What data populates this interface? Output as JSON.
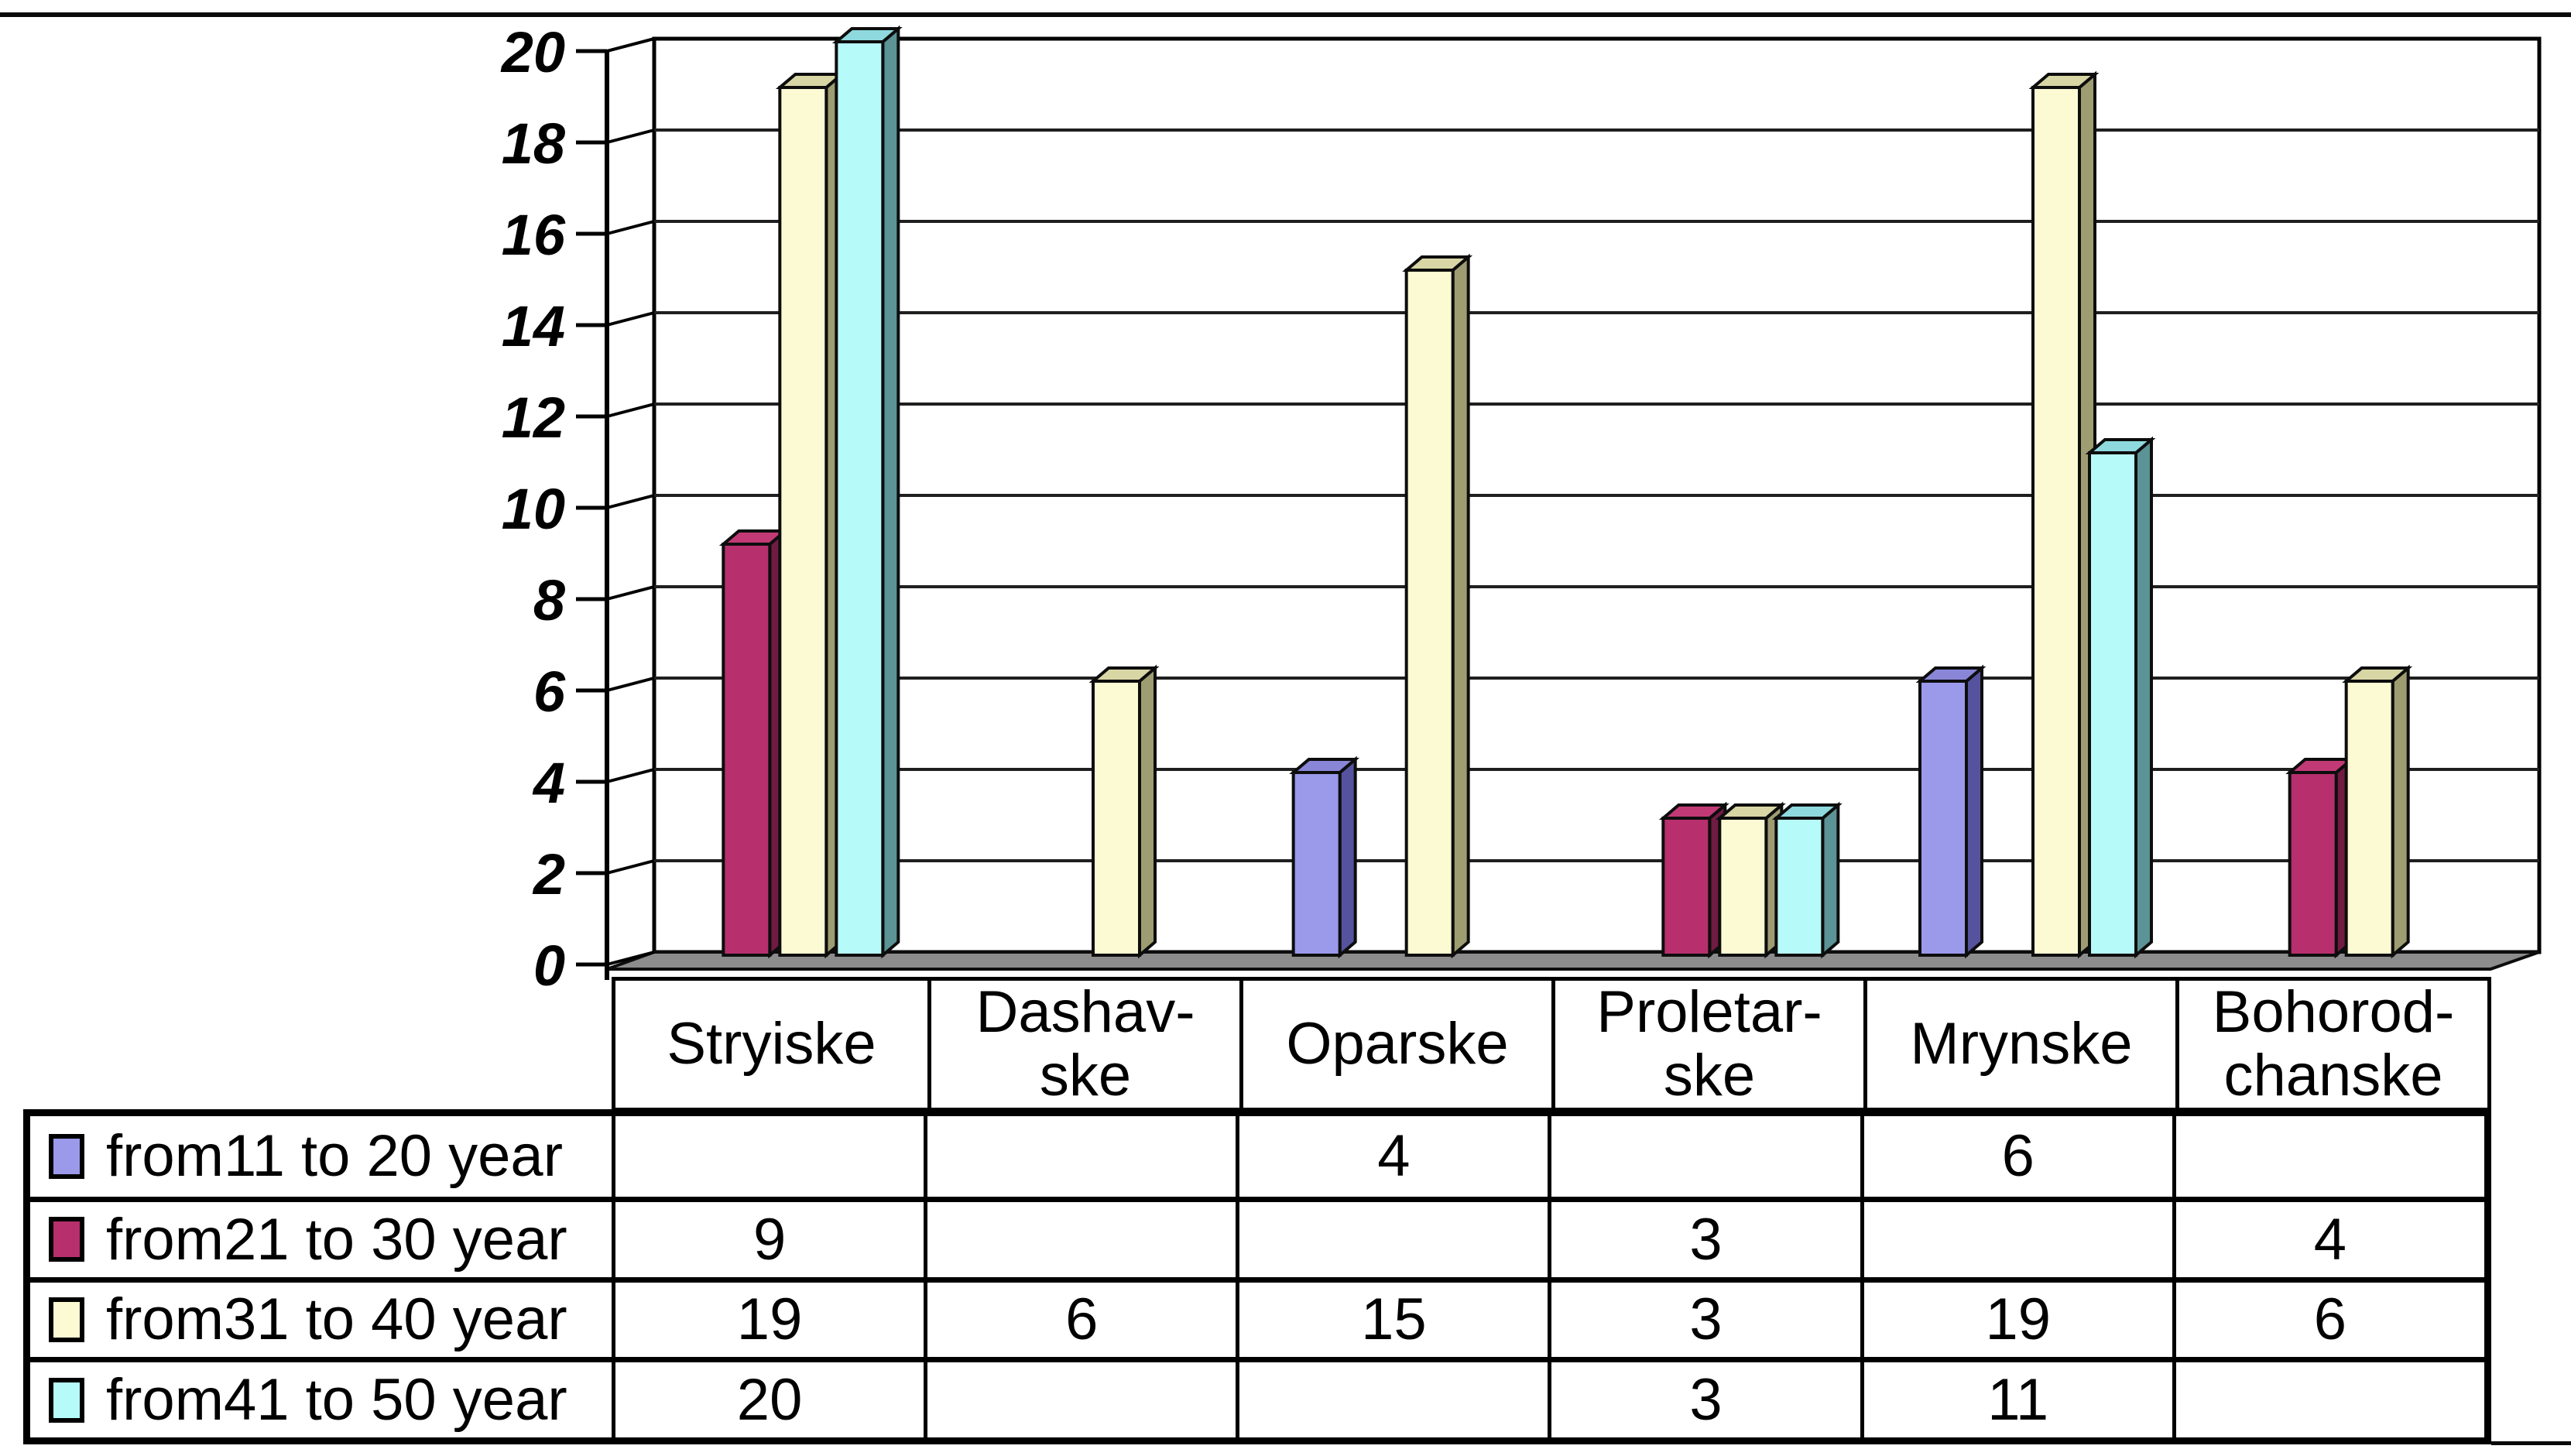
{
  "y_axis": {
    "tick_labels": [
      "0",
      "2",
      "4",
      "6",
      "8",
      "10",
      "12",
      "14",
      "16",
      "18",
      "20"
    ]
  },
  "chart_data": {
    "type": "bar",
    "style": "3d-column",
    "title": "",
    "xlabel": "",
    "ylabel": "",
    "ylim": [
      0,
      20
    ],
    "ytick_step": 2,
    "grid": "horizontal",
    "legend_position": "table-left",
    "categories": [
      "Stryiske",
      "Dashavske",
      "Oparske",
      "Proletarske",
      "Mrynske",
      "Bohorodchanske"
    ],
    "category_display": [
      [
        "Stryiske"
      ],
      [
        "Dashav-",
        "ske"
      ],
      [
        "Oparske"
      ],
      [
        "Proletar-",
        "ske"
      ],
      [
        "Mrynske"
      ],
      [
        "Bohorod-",
        "chanske"
      ]
    ],
    "series": [
      {
        "name": "from11 to 20 year",
        "color": "#9B99EA",
        "side_color": "#55539E",
        "top_color": "#8986D8",
        "values": [
          null,
          null,
          4,
          null,
          6,
          null
        ]
      },
      {
        "name": "from21 to 30 year",
        "color": "#B72F6C",
        "side_color": "#701B42",
        "top_color": "#C23A75",
        "values": [
          9,
          null,
          null,
          3,
          null,
          4
        ]
      },
      {
        "name": "from31 to 40 year",
        "color": "#FBFAD2",
        "side_color": "#9E9D72",
        "top_color": "#D8D6A4",
        "values": [
          19,
          6,
          15,
          3,
          19,
          6
        ]
      },
      {
        "name": "from41 to 50 year",
        "color": "#B7FAFA",
        "side_color": "#5B9396",
        "top_color": "#8ED9DE",
        "values": [
          20,
          null,
          null,
          3,
          11,
          null
        ]
      }
    ]
  },
  "colors": {
    "background": "#FFFFFF",
    "wall": "#FFFFFF",
    "floor": "#8C8C8C",
    "gridline": "#1F1F1F",
    "outline": "#0D0D0D",
    "border": "#000000",
    "text": "#000000"
  }
}
